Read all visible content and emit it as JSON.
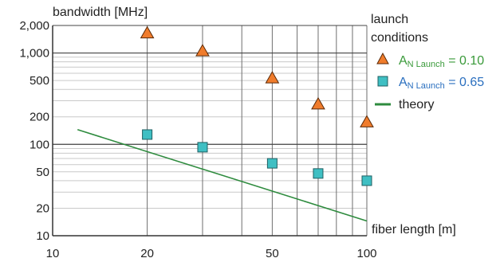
{
  "chart_data": {
    "type": "scatter",
    "xlabel": "fiber length [m]",
    "ylabel": "bandwidth [MHz]",
    "xscale": "log",
    "yscale": "log",
    "xlim": [
      10,
      100
    ],
    "ylim": [
      10,
      2000
    ],
    "grid": true,
    "legend_position": "right",
    "legend_title": [
      "launch",
      "conditions"
    ],
    "x_ticks": [
      10,
      20,
      50,
      100
    ],
    "x_tick_labels": [
      "10",
      "20",
      "50",
      "100"
    ],
    "y_ticks": [
      10,
      20,
      50,
      100,
      200,
      500,
      1000,
      2000
    ],
    "y_tick_labels": [
      "10",
      "20",
      "50",
      "100",
      "200",
      "500",
      "1,000",
      "2,000"
    ],
    "series": [
      {
        "label_main": "A",
        "label_sub": "N Launch",
        "label_rest": " = 0.10",
        "marker": "triangle",
        "color": "#f07c2c",
        "label_color": "#3a9a3a",
        "x": [
          20,
          30,
          50,
          70,
          100
        ],
        "y": [
          1650,
          1050,
          530,
          275,
          175
        ]
      },
      {
        "label_main": "A",
        "label_sub": "N Launch",
        "label_rest": " = 0.65",
        "marker": "square",
        "color": "#3fbfc3",
        "label_color": "#2a6fbf",
        "x": [
          20,
          30,
          50,
          70,
          100
        ],
        "y": [
          128,
          93,
          62,
          48,
          40
        ]
      },
      {
        "name": "theory",
        "marker": "line",
        "color": "#2e8b3e",
        "x": [
          12,
          100
        ],
        "y": [
          145,
          14.5
        ]
      }
    ]
  }
}
